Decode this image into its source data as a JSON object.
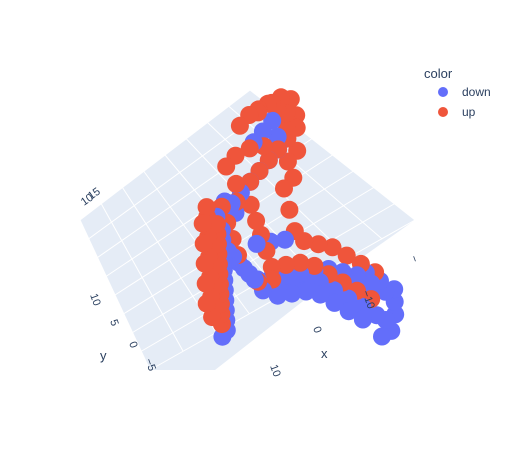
{
  "chart_data": {
    "type": "scatter",
    "subtype": "scatter3d",
    "legend": {
      "title": "color",
      "position": "top-right",
      "entries": [
        {
          "name": "down",
          "color": "#636efa"
        },
        {
          "name": "up",
          "color": "#ef553b"
        }
      ]
    },
    "axes": {
      "x": {
        "title": "x",
        "ticks": [
          "10",
          "0",
          "−10",
          "−"
        ]
      },
      "y": {
        "title": "y",
        "ticks": [
          "−5",
          "0",
          "5",
          "10"
        ]
      },
      "z": {
        "title": "",
        "ticks": [
          "10",
          "15"
        ]
      }
    },
    "background": "#e5ecf6",
    "grid": true,
    "series": [
      {
        "name": "down",
        "color": "#636efa",
        "points": [
          [
            -6,
            -5,
            -6
          ],
          [
            -6,
            -4,
            -5.5
          ],
          [
            -5,
            -3,
            -5
          ],
          [
            -4,
            -2,
            -4.5
          ],
          [
            -3,
            -1,
            -4
          ],
          [
            -2,
            0,
            -3.5
          ],
          [
            -1,
            1,
            -3
          ],
          [
            0,
            2,
            -2.5
          ],
          [
            1,
            3,
            -2
          ],
          [
            2,
            4,
            -1.5
          ],
          [
            3,
            5,
            -1
          ],
          [
            4,
            6,
            -0.5
          ],
          [
            -4,
            -3,
            -5
          ],
          [
            -2,
            -1,
            -4
          ],
          [
            0,
            1,
            -3
          ],
          [
            2,
            3,
            -2
          ],
          [
            4,
            5,
            -1
          ],
          [
            6,
            7,
            0
          ],
          [
            -8,
            2,
            -1
          ],
          [
            -10,
            3,
            0
          ],
          [
            -12,
            4,
            1
          ],
          [
            -14,
            5,
            2
          ],
          [
            -16,
            6,
            3
          ],
          [
            -18,
            7,
            2
          ],
          [
            -20,
            8,
            1
          ],
          [
            -22,
            9,
            0
          ],
          [
            -24,
            10,
            -1
          ],
          [
            -19,
            6,
            1
          ],
          [
            -21,
            7,
            0
          ],
          [
            -23,
            8,
            -1
          ],
          [
            -17,
            5,
            2
          ],
          [
            -15,
            4,
            2
          ],
          [
            -13,
            3,
            1
          ],
          [
            -11,
            2,
            0
          ],
          [
            -25,
            11,
            -2
          ],
          [
            -26,
            12,
            -1
          ],
          [
            -20,
            10,
            4
          ],
          [
            -22,
            11,
            3
          ],
          [
            -24,
            12,
            2
          ],
          [
            -18,
            9,
            4
          ],
          [
            -16,
            8,
            4
          ],
          [
            -14,
            7,
            3
          ],
          [
            -12,
            6,
            2
          ],
          [
            -10,
            5,
            1
          ],
          [
            -8,
            4,
            0
          ],
          [
            -6,
            3,
            -1
          ],
          [
            -21,
            9,
            5
          ],
          [
            -23,
            10,
            4
          ],
          [
            -19,
            8,
            5
          ],
          [
            -17,
            7,
            5
          ],
          [
            2,
            6,
            6
          ],
          [
            1,
            7,
            8
          ],
          [
            0,
            8,
            10
          ],
          [
            -1,
            9,
            12
          ],
          [
            -2,
            10,
            14
          ],
          [
            -3,
            11,
            16
          ],
          [
            -2,
            12,
            17
          ],
          [
            0,
            13,
            18
          ],
          [
            1,
            12,
            16
          ],
          [
            2,
            11,
            14
          ],
          [
            -5,
            1,
            2
          ],
          [
            -7,
            0,
            3
          ],
          [
            -9,
            -1,
            4
          ],
          [
            -3,
            2,
            1
          ],
          [
            -1,
            3,
            0
          ],
          [
            1,
            4,
            -1
          ],
          [
            3,
            8,
            2
          ],
          [
            5,
            9,
            1
          ],
          [
            7,
            10,
            0
          ],
          [
            -4,
            5,
            3
          ],
          [
            -6,
            6,
            4
          ],
          [
            -8,
            7,
            5
          ],
          [
            -26,
            9,
            -3
          ],
          [
            -27,
            10,
            -2
          ],
          [
            -25,
            13,
            0
          ],
          [
            -24,
            14,
            1
          ],
          [
            -22,
            13,
            2
          ],
          [
            -20,
            12,
            3
          ]
        ]
      },
      {
        "name": "up",
        "color": "#ef553b",
        "points": [
          [
            -5,
            -4,
            -5
          ],
          [
            -4,
            -3,
            -4.5
          ],
          [
            -3,
            -2,
            -4
          ],
          [
            -2,
            -1,
            -3.5
          ],
          [
            -1,
            0,
            -3
          ],
          [
            0,
            1,
            -2.5
          ],
          [
            1,
            2,
            -2
          ],
          [
            2,
            3,
            -1.5
          ],
          [
            3,
            4,
            -1
          ],
          [
            4,
            5,
            -0.5
          ],
          [
            5,
            6,
            0
          ],
          [
            -3,
            -4,
            -5
          ],
          [
            -1,
            -2,
            -4
          ],
          [
            1,
            0,
            -3
          ],
          [
            3,
            2,
            -2
          ],
          [
            5,
            4,
            -1
          ],
          [
            7,
            6,
            0
          ],
          [
            6,
            8,
            1
          ],
          [
            0,
            8,
            10
          ],
          [
            -1,
            9,
            12
          ],
          [
            -2,
            10,
            14
          ],
          [
            -3,
            11,
            16
          ],
          [
            -4,
            12,
            18
          ],
          [
            -3,
            13,
            19
          ],
          [
            -2,
            14,
            20
          ],
          [
            -1,
            13,
            21
          ],
          [
            0,
            12,
            22
          ],
          [
            1,
            11,
            21
          ],
          [
            2,
            10,
            20
          ],
          [
            3,
            9,
            18
          ],
          [
            2,
            12,
            19
          ],
          [
            1,
            14,
            20
          ],
          [
            0,
            15,
            21
          ],
          [
            -2,
            15,
            22
          ],
          [
            -4,
            14,
            21
          ],
          [
            -5,
            13,
            20
          ],
          [
            -1,
            10,
            16
          ],
          [
            1,
            9,
            15
          ],
          [
            3,
            8,
            13
          ],
          [
            4,
            7,
            11
          ],
          [
            2,
            7,
            9
          ],
          [
            1,
            6,
            7
          ],
          [
            -6,
            9,
            12
          ],
          [
            -8,
            8,
            10
          ],
          [
            -10,
            7,
            8
          ],
          [
            -7,
            10,
            14
          ],
          [
            -5,
            11,
            15
          ],
          [
            -6,
            12,
            17
          ],
          [
            -4,
            6,
            4
          ],
          [
            -6,
            5,
            3
          ],
          [
            -8,
            4,
            2
          ],
          [
            -10,
            5,
            3
          ],
          [
            -12,
            6,
            4
          ],
          [
            -14,
            7,
            4
          ],
          [
            -16,
            8,
            3
          ],
          [
            -18,
            9,
            2
          ],
          [
            -20,
            10,
            1
          ],
          [
            -22,
            11,
            0
          ],
          [
            -9,
            3,
            1
          ],
          [
            -7,
            2,
            0
          ],
          [
            0,
            4,
            2
          ],
          [
            2,
            5,
            3
          ],
          [
            4,
            6,
            4
          ],
          [
            -2,
            3,
            1
          ],
          [
            -3,
            6,
            6
          ],
          [
            -1,
            7,
            7
          ],
          [
            -11,
            8,
            6
          ],
          [
            -13,
            9,
            6
          ],
          [
            -15,
            10,
            6
          ],
          [
            -17,
            11,
            5
          ],
          [
            -19,
            12,
            4
          ],
          [
            -21,
            13,
            3
          ],
          [
            1,
            -1,
            -3.5
          ],
          [
            -1,
            -3,
            -4.5
          ],
          [
            3,
            1,
            -2.5
          ],
          [
            5,
            3,
            -1.5
          ],
          [
            7,
            5,
            -0.5
          ],
          [
            8,
            7,
            0.5
          ]
        ]
      }
    ]
  }
}
